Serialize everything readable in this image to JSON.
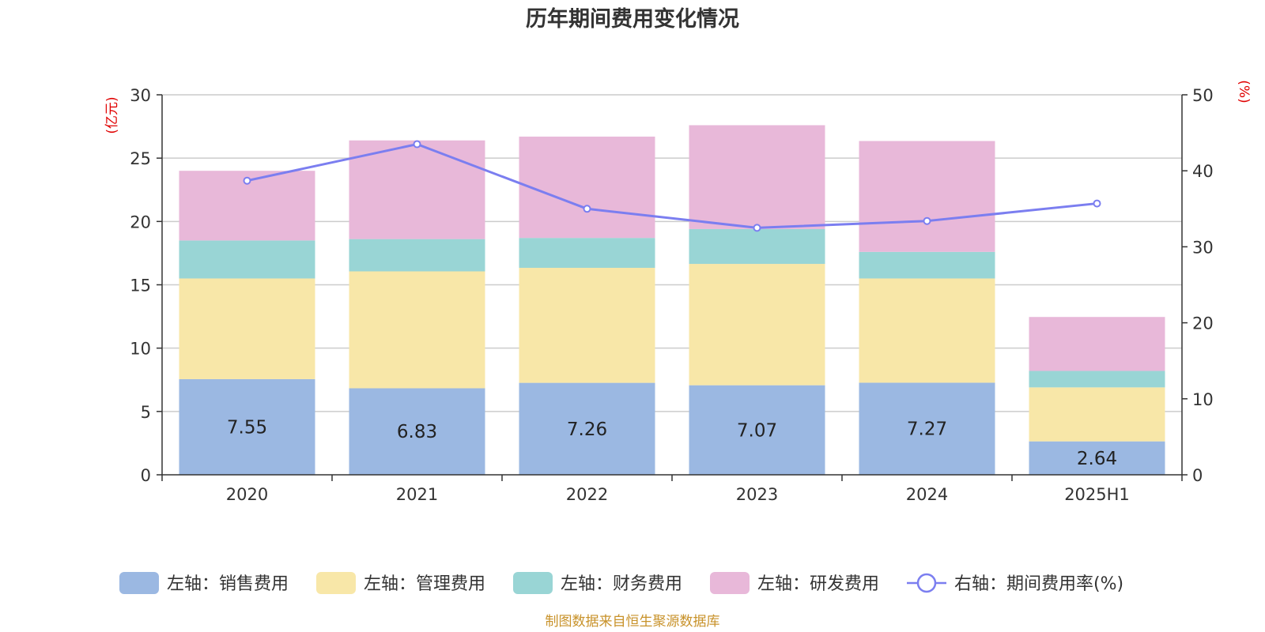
{
  "chart_data": {
    "type": "bar",
    "title": "历年期间费用变化情况",
    "categories": [
      "2020",
      "2021",
      "2022",
      "2023",
      "2024",
      "2025H1"
    ],
    "left_axis": {
      "unit": "(亿元)",
      "ylim": [
        0,
        30
      ],
      "ticks": [
        "0",
        "5",
        "10",
        "15",
        "20",
        "25",
        "30"
      ]
    },
    "right_axis": {
      "unit": "(%)",
      "ylim": [
        0,
        50
      ],
      "ticks": [
        "0",
        "10",
        "20",
        "30",
        "40",
        "50"
      ]
    },
    "series": [
      {
        "name": "左轴：销售费用",
        "kind": "bar",
        "stack": "left",
        "color": "#9bb8e2",
        "values": [
          7.55,
          6.83,
          7.26,
          7.07,
          7.27,
          2.64
        ],
        "labels": [
          "7.55",
          "6.83",
          "7.26",
          "7.07",
          "7.27",
          "2.64"
        ]
      },
      {
        "name": "左轴：管理费用",
        "kind": "bar",
        "stack": "left",
        "color": "#f8e7a8",
        "values": [
          7.95,
          9.23,
          9.08,
          9.58,
          8.23,
          4.26
        ]
      },
      {
        "name": "左轴：财务费用",
        "kind": "bar",
        "stack": "left",
        "color": "#99d5d5",
        "values": [
          3.0,
          2.55,
          2.36,
          2.75,
          2.1,
          1.3
        ]
      },
      {
        "name": "左轴：研发费用",
        "kind": "bar",
        "stack": "left",
        "color": "#e8b8d9",
        "values": [
          5.5,
          7.79,
          8.0,
          8.2,
          8.75,
          4.26
        ]
      },
      {
        "name": "右轴：期间费用率(%)",
        "kind": "line",
        "axis": "right",
        "color": "#7b7ef0",
        "values": [
          38.7,
          43.5,
          35.0,
          32.5,
          33.4,
          35.7
        ]
      }
    ],
    "grid": true,
    "legend_position": "bottom",
    "source_note": "制图数据来自恒生聚源数据库"
  }
}
